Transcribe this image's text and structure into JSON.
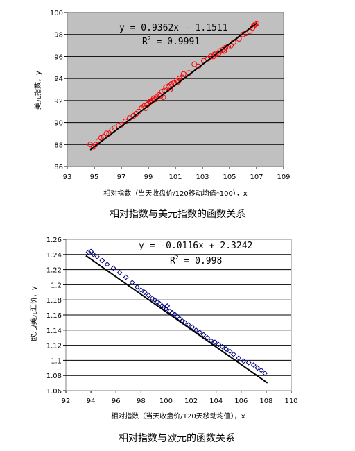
{
  "chart_data": [
    {
      "type": "scatter",
      "caption": "相对指数与美元指数的函数关系",
      "xlabel": "相对指数（当天收盘价/120移动均值*100），x",
      "ylabel": "美元指数，y",
      "xlim": [
        93,
        109
      ],
      "ylim": [
        86,
        100
      ],
      "xticks": [
        93,
        95,
        97,
        99,
        101,
        103,
        105,
        107,
        109
      ],
      "yticks": [
        86,
        88,
        90,
        92,
        94,
        96,
        98,
        100
      ],
      "grid": "horizontal",
      "plot_background": "#c0c0c0",
      "marker": "circle",
      "marker_color": "#ff0000",
      "trendline": {
        "slope": 0.9362,
        "intercept": -1.1511,
        "x_range": [
          94.7,
          107.0
        ],
        "color": "#000000"
      },
      "equation": "y = 0.9362x - 1.1511",
      "r2_label": "R",
      "r2_sup": "2",
      "r2_value": " = 0.9991",
      "x": [
        94.7,
        94.95,
        95.1,
        95.3,
        95.5,
        95.7,
        95.9,
        96.1,
        96.3,
        96.5,
        96.8,
        97.0,
        97.3,
        97.6,
        97.9,
        98.1,
        98.3,
        98.5,
        98.7,
        98.8,
        98.9,
        99.0,
        99.1,
        99.2,
        99.3,
        99.4,
        99.5,
        99.6,
        99.8,
        99.9,
        100.0,
        100.1,
        100.2,
        100.3,
        100.5,
        100.6,
        100.7,
        100.9,
        101.1,
        101.2,
        101.3,
        101.5,
        101.6,
        102.0,
        102.4,
        102.7,
        103.1,
        103.4,
        103.6,
        103.8,
        103.9,
        104.0,
        104.2,
        104.3,
        104.5,
        104.6,
        104.7,
        104.9,
        105.1,
        105.3,
        105.7,
        106.0,
        106.2,
        106.5,
        106.7,
        106.8,
        106.9,
        107.0
      ],
      "y": [
        88.0,
        87.8,
        88.0,
        88.3,
        88.6,
        88.7,
        89.0,
        89.0,
        89.3,
        89.5,
        89.7,
        89.8,
        90.1,
        90.4,
        90.6,
        90.8,
        91.0,
        91.3,
        91.5,
        91.3,
        91.6,
        91.7,
        91.9,
        91.9,
        92.0,
        92.2,
        92.1,
        92.3,
        92.5,
        92.4,
        92.8,
        92.3,
        92.9,
        93.2,
        93.3,
        93.0,
        93.5,
        93.6,
        93.8,
        93.7,
        94.0,
        94.1,
        94.4,
        94.5,
        95.3,
        95.1,
        95.6,
        95.8,
        96.0,
        96.0,
        96.2,
        96.2,
        96.3,
        96.5,
        96.6,
        96.5,
        96.8,
        96.9,
        97.0,
        97.3,
        97.6,
        98.0,
        98.1,
        98.3,
        98.6,
        98.8,
        98.9,
        99.0
      ]
    },
    {
      "type": "scatter",
      "caption": "相对指数与欧元的函数关系",
      "xlabel": "相对指数（当天收盘价/120天移动均值），x",
      "ylabel": "欧元/美元汇价，y",
      "xlim": [
        92,
        110
      ],
      "ylim": [
        1.06,
        1.26
      ],
      "xticks": [
        92,
        94,
        96,
        98,
        100,
        102,
        104,
        106,
        108,
        110
      ],
      "yticks": [
        "1.06",
        "1.08",
        "1.1",
        "1.12",
        "1.14",
        "1.16",
        "1.18",
        "1.2",
        "1.22",
        "1.24",
        "1.26"
      ],
      "grid": "horizontal",
      "plot_background": "#ffffff",
      "marker": "diamond",
      "marker_color": "#000080",
      "trendline": {
        "slope": -0.0116,
        "intercept": 2.3242,
        "x_range": [
          93.6,
          108.1
        ],
        "color": "#000000"
      },
      "equation": "y = -0.0116x + 2.3242",
      "r2_label": "R",
      "r2_sup": "2",
      "r2_value": " = 0.998",
      "x": [
        93.8,
        94.0,
        94.2,
        94.5,
        94.9,
        95.3,
        95.8,
        96.3,
        96.8,
        97.3,
        97.7,
        98.0,
        98.3,
        98.6,
        98.9,
        99.1,
        99.3,
        99.5,
        99.7,
        99.8,
        100.0,
        100.1,
        100.3,
        100.5,
        100.7,
        100.9,
        101.1,
        101.3,
        101.5,
        101.8,
        102.1,
        102.4,
        102.7,
        103.0,
        103.3,
        103.6,
        103.9,
        104.2,
        104.5,
        104.8,
        105.1,
        105.4,
        105.8,
        106.2,
        106.6,
        107.0,
        107.3,
        107.6,
        107.9
      ],
      "y": [
        1.243,
        1.244,
        1.24,
        1.237,
        1.232,
        1.227,
        1.222,
        1.216,
        1.21,
        1.203,
        1.197,
        1.193,
        1.19,
        1.186,
        1.182,
        1.18,
        1.177,
        1.175,
        1.172,
        1.17,
        1.168,
        1.172,
        1.165,
        1.163,
        1.161,
        1.158,
        1.155,
        1.152,
        1.15,
        1.147,
        1.144,
        1.14,
        1.137,
        1.134,
        1.13,
        1.126,
        1.124,
        1.121,
        1.118,
        1.115,
        1.112,
        1.108,
        1.103,
        1.099,
        1.097,
        1.094,
        1.09,
        1.087,
        1.083
      ]
    }
  ]
}
